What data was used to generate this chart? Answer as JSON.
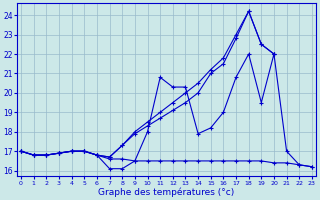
{
  "xlabel": "Graphe des températures (°c)",
  "bg_color": "#cce8e8",
  "line_color": "#0000cc",
  "grid_color": "#99bbcc",
  "x_ticks": [
    0,
    1,
    2,
    3,
    4,
    5,
    6,
    7,
    8,
    9,
    10,
    11,
    12,
    13,
    14,
    15,
    16,
    17,
    18,
    19,
    20,
    21,
    22,
    23
  ],
  "y_ticks": [
    16,
    17,
    18,
    19,
    20,
    21,
    22,
    23,
    24
  ],
  "ylim": [
    15.7,
    24.6
  ],
  "xlim": [
    -0.3,
    23.3
  ],
  "series": {
    "line_tmax": [
      17.0,
      16.8,
      16.8,
      16.9,
      17.0,
      17.0,
      16.8,
      16.7,
      17.3,
      18.0,
      18.5,
      19.0,
      19.5,
      20.0,
      20.5,
      21.2,
      21.8,
      23.0,
      24.2,
      22.5,
      22.0,
      null,
      null,
      null
    ],
    "line_tinst": [
      17.0,
      16.8,
      16.8,
      16.9,
      17.0,
      17.0,
      16.8,
      16.1,
      16.1,
      16.5,
      18.0,
      20.8,
      20.3,
      20.3,
      17.9,
      18.2,
      19.0,
      20.8,
      22.0,
      19.5,
      22.0,
      17.0,
      16.3,
      16.2
    ],
    "line_tmin": [
      17.0,
      16.8,
      16.8,
      16.9,
      17.0,
      17.0,
      16.8,
      16.7,
      17.3,
      17.9,
      18.3,
      18.7,
      19.1,
      19.5,
      20.0,
      21.0,
      21.5,
      22.8,
      24.2,
      22.5,
      22.0,
      null,
      null,
      null
    ],
    "line_tbase": [
      17.0,
      16.8,
      16.8,
      16.9,
      17.0,
      17.0,
      16.8,
      16.6,
      16.6,
      16.5,
      16.5,
      16.5,
      16.5,
      16.5,
      16.5,
      16.5,
      16.5,
      16.5,
      16.5,
      16.5,
      16.4,
      16.4,
      16.3,
      16.2
    ]
  }
}
